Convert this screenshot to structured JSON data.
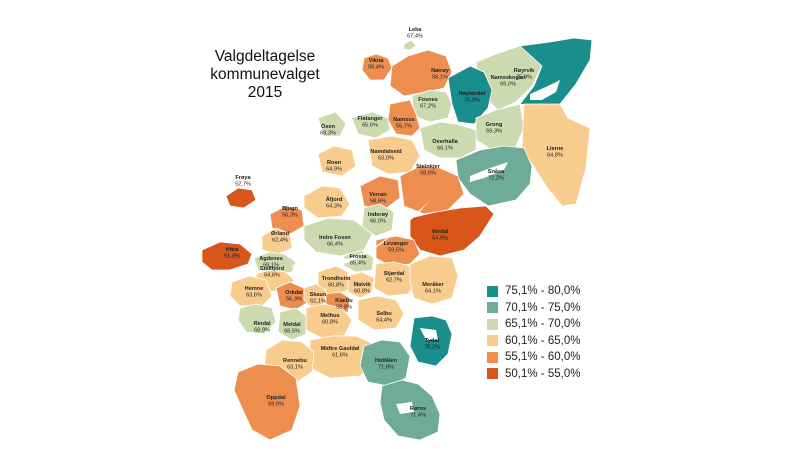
{
  "title": {
    "line1": "Valgdeltagelse",
    "line2": "kommunevalget",
    "line3": "2015"
  },
  "colors": {
    "c75_80": "#1a8d8d",
    "c70_75": "#6eab98",
    "c65_70": "#cdd9ae",
    "c60_65": "#f8cc8c",
    "c55_60": "#ee8e4e",
    "c50_55": "#d8561a",
    "sea": "#ffffff",
    "border": "#ffffff"
  },
  "legend": [
    {
      "label": "75,1% - 80,0%",
      "color": "#1a8d8d"
    },
    {
      "label": "70,1% - 75,0%",
      "color": "#6eab98"
    },
    {
      "label": "65,1% - 70,0%",
      "color": "#cdd9ae"
    },
    {
      "label": "60,1% - 65,0%",
      "color": "#f8cc8c"
    },
    {
      "label": "55,1% - 60,0%",
      "color": "#ee8e4e"
    },
    {
      "label": "50,1% - 55,0%",
      "color": "#d8561a"
    }
  ],
  "municipalities": [
    {
      "name": "Leka",
      "value": "67,4%"
    },
    {
      "name": "Vikna",
      "value": "58,4%"
    },
    {
      "name": "Nærøy",
      "value": "58,1%"
    },
    {
      "name": "Namsskogan",
      "value": "69,0%"
    },
    {
      "name": "Røyrvik",
      "value": "75,9%"
    },
    {
      "name": "Høylandet",
      "value": "75,9%"
    },
    {
      "name": "Fosnes",
      "value": "67,2%"
    },
    {
      "name": "Osen",
      "value": "68,3%"
    },
    {
      "name": "Flatanger",
      "value": "65,6%"
    },
    {
      "name": "Namsos",
      "value": "55,7%"
    },
    {
      "name": "Grong",
      "value": "69,3%"
    },
    {
      "name": "Overhalla",
      "value": "66,1%"
    },
    {
      "name": "Namdalseid",
      "value": "63,0%"
    },
    {
      "name": "Lierne",
      "value": "64,8%"
    },
    {
      "name": "Roan",
      "value": "64,9%"
    },
    {
      "name": "Snåsa",
      "value": "72,2%"
    },
    {
      "name": "Frøya",
      "value": "52,7%"
    },
    {
      "name": "Verran",
      "value": "58,6%"
    },
    {
      "name": "Steinkjer",
      "value": "58,6%"
    },
    {
      "name": "Åfjord",
      "value": "64,3%"
    },
    {
      "name": "Bjugn",
      "value": "56,3%"
    },
    {
      "name": "Inderøy",
      "value": "66,0%"
    },
    {
      "name": "Ørland",
      "value": "62,4%"
    },
    {
      "name": "Verdal",
      "value": "54,9%"
    },
    {
      "name": "Indre Fosen",
      "value": "66,4%"
    },
    {
      "name": "Hitra",
      "value": "51,8%"
    },
    {
      "name": "Levanger",
      "value": "59,5%"
    },
    {
      "name": "Frosta",
      "value": "65,4%"
    },
    {
      "name": "Agdenes",
      "value": "68,1%"
    },
    {
      "name": "Snillfjord",
      "value": "64,6%"
    },
    {
      "name": "Trondheim",
      "value": "60,8%"
    },
    {
      "name": "Stjørdal",
      "value": "62,7%"
    },
    {
      "name": "Malvik",
      "value": "60,8%"
    },
    {
      "name": "Meråker",
      "value": "64,1%"
    },
    {
      "name": "Hemne",
      "value": "63,6%"
    },
    {
      "name": "Orkdal",
      "value": "56,3%"
    },
    {
      "name": "Skaun",
      "value": "62,1%"
    },
    {
      "name": "Klæbu",
      "value": "58,8%"
    },
    {
      "name": "Rindal",
      "value": "68,9%"
    },
    {
      "name": "Melhus",
      "value": "60,8%"
    },
    {
      "name": "Selbu",
      "value": "64,4%"
    },
    {
      "name": "Meldal",
      "value": "68,5%"
    },
    {
      "name": "Tydal",
      "value": "78,2%"
    },
    {
      "name": "Midtre Gauldal",
      "value": "61,6%"
    },
    {
      "name": "Rennebu",
      "value": "63,1%"
    },
    {
      "name": "Holtålen",
      "value": "71,8%"
    },
    {
      "name": "Oppdal",
      "value": "59,9%"
    },
    {
      "name": "Røros",
      "value": "71,4%"
    }
  ]
}
